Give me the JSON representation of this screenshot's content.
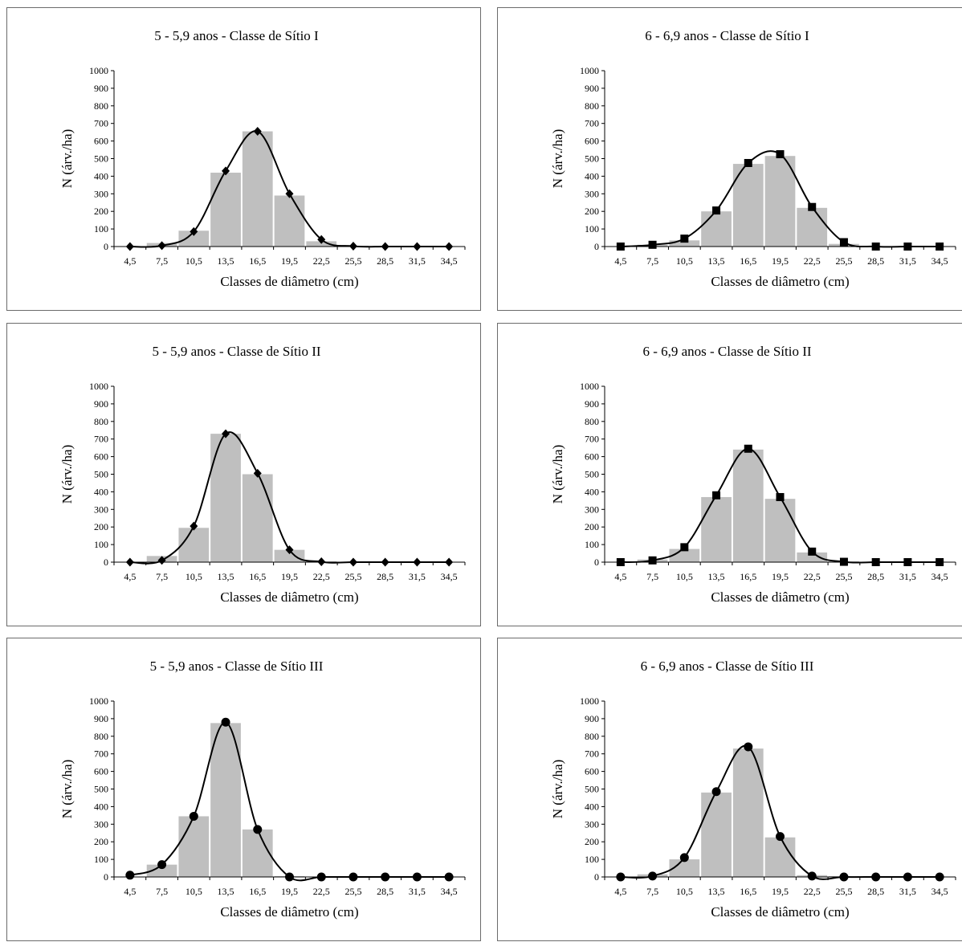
{
  "chart_data": [
    {
      "type": "bar",
      "title": "5 - 5,9 anos - Classe de Sítio I",
      "xlabel": "Classes de diâmetro (cm)",
      "ylabel": "N (árv./ha)",
      "categories": [
        "4,5",
        "7,5",
        "10,5",
        "13,5",
        "16,5",
        "19,5",
        "22,5",
        "25,5",
        "28,5",
        "31,5",
        "34,5"
      ],
      "yticks": [
        "0",
        "100",
        "200",
        "300",
        "400",
        "500",
        "600",
        "700",
        "800",
        "900",
        "1000"
      ],
      "ylim": [
        0,
        1000
      ],
      "marker": "diamond",
      "series": [
        {
          "kind": "bar",
          "color": "#bfbfbf",
          "values": [
            0,
            20,
            90,
            420,
            655,
            290,
            30,
            5,
            0,
            0,
            0
          ]
        },
        {
          "kind": "line",
          "color": "#000000",
          "values": [
            0,
            5,
            85,
            430,
            655,
            300,
            40,
            2,
            0,
            0,
            0
          ]
        }
      ]
    },
    {
      "type": "bar",
      "title": "6 - 6,9 anos - Classe de Sítio I",
      "xlabel": "Classes de diâmetro (cm)",
      "ylabel": "N (árv./ha)",
      "categories": [
        "4,5",
        "7,5",
        "10,5",
        "13,5",
        "16,5",
        "19,5",
        "22,5",
        "25,5",
        "28,5",
        "31,5",
        "34,5"
      ],
      "yticks": [
        "0",
        "100",
        "200",
        "300",
        "400",
        "500",
        "600",
        "700",
        "800",
        "900",
        "1000"
      ],
      "ylim": [
        0,
        1000
      ],
      "marker": "square",
      "series": [
        {
          "kind": "bar",
          "color": "#bfbfbf",
          "values": [
            0,
            10,
            35,
            200,
            470,
            515,
            220,
            15,
            0,
            0,
            0
          ]
        },
        {
          "kind": "line",
          "color": "#000000",
          "values": [
            0,
            10,
            45,
            205,
            475,
            525,
            225,
            25,
            0,
            0,
            0
          ]
        }
      ]
    },
    {
      "type": "bar",
      "title": "5 - 5,9 anos - Classe de Sítio II",
      "xlabel": "Classes de diâmetro (cm)",
      "ylabel": "N (árv./ha)",
      "categories": [
        "4,5",
        "7,5",
        "10,5",
        "13,5",
        "16,5",
        "19,5",
        "22,5",
        "25,5",
        "28,5",
        "31,5",
        "34,5"
      ],
      "yticks": [
        "0",
        "100",
        "200",
        "300",
        "400",
        "500",
        "600",
        "700",
        "800",
        "900",
        "1000"
      ],
      "ylim": [
        0,
        1000
      ],
      "marker": "diamond",
      "series": [
        {
          "kind": "bar",
          "color": "#bfbfbf",
          "values": [
            0,
            35,
            195,
            730,
            500,
            70,
            5,
            0,
            0,
            0,
            0
          ]
        },
        {
          "kind": "line",
          "color": "#000000",
          "values": [
            0,
            10,
            205,
            730,
            505,
            70,
            2,
            0,
            0,
            0,
            0
          ]
        }
      ]
    },
    {
      "type": "bar",
      "title": "6 - 6,9 anos - Classe de Sítio II",
      "xlabel": "Classes de diâmetro (cm)",
      "ylabel": "N (árv./ha)",
      "categories": [
        "4,5",
        "7,5",
        "10,5",
        "13,5",
        "16,5",
        "19,5",
        "22,5",
        "25,5",
        "28,5",
        "31,5",
        "34,5"
      ],
      "yticks": [
        "0",
        "100",
        "200",
        "300",
        "400",
        "500",
        "600",
        "700",
        "800",
        "900",
        "1000"
      ],
      "ylim": [
        0,
        1000
      ],
      "marker": "square",
      "series": [
        {
          "kind": "bar",
          "color": "#bfbfbf",
          "values": [
            0,
            15,
            75,
            370,
            640,
            360,
            55,
            5,
            0,
            0,
            0
          ]
        },
        {
          "kind": "line",
          "color": "#000000",
          "values": [
            0,
            10,
            85,
            380,
            645,
            370,
            60,
            2,
            0,
            0,
            0
          ]
        }
      ]
    },
    {
      "type": "bar",
      "title": "5 - 5,9 anos - Classe de Sítio III",
      "xlabel": "Classes de diâmetro (cm)",
      "ylabel": "N (árv./ha)",
      "categories": [
        "4,5",
        "7,5",
        "10,5",
        "13,5",
        "16,5",
        "19,5",
        "22,5",
        "25,5",
        "28,5",
        "31,5",
        "34,5"
      ],
      "yticks": [
        "0",
        "100",
        "200",
        "300",
        "400",
        "500",
        "600",
        "700",
        "800",
        "900",
        "1000"
      ],
      "ylim": [
        0,
        1000
      ],
      "marker": "circle",
      "series": [
        {
          "kind": "bar",
          "color": "#bfbfbf",
          "values": [
            0,
            70,
            345,
            875,
            270,
            5,
            0,
            0,
            0,
            0,
            0
          ]
        },
        {
          "kind": "line",
          "color": "#000000",
          "values": [
            10,
            70,
            345,
            880,
            270,
            0,
            0,
            0,
            0,
            0,
            0
          ]
        }
      ]
    },
    {
      "type": "bar",
      "title": "6 - 6,9 anos - Classe de Sítio III",
      "xlabel": "Classes de diâmetro (cm)",
      "ylabel": "N (árv./ha)",
      "categories": [
        "4,5",
        "7,5",
        "10,5",
        "13,5",
        "16,5",
        "19,5",
        "22,5",
        "25,5",
        "28,5",
        "31,5",
        "34,5"
      ],
      "yticks": [
        "0",
        "100",
        "200",
        "300",
        "400",
        "500",
        "600",
        "700",
        "800",
        "900",
        "1000"
      ],
      "ylim": [
        0,
        1000
      ],
      "marker": "circle",
      "series": [
        {
          "kind": "bar",
          "color": "#bfbfbf",
          "values": [
            0,
            15,
            100,
            480,
            730,
            225,
            10,
            5,
            0,
            0,
            0
          ]
        },
        {
          "kind": "line",
          "color": "#000000",
          "values": [
            0,
            5,
            110,
            485,
            740,
            230,
            5,
            0,
            0,
            0,
            0
          ]
        }
      ]
    }
  ]
}
